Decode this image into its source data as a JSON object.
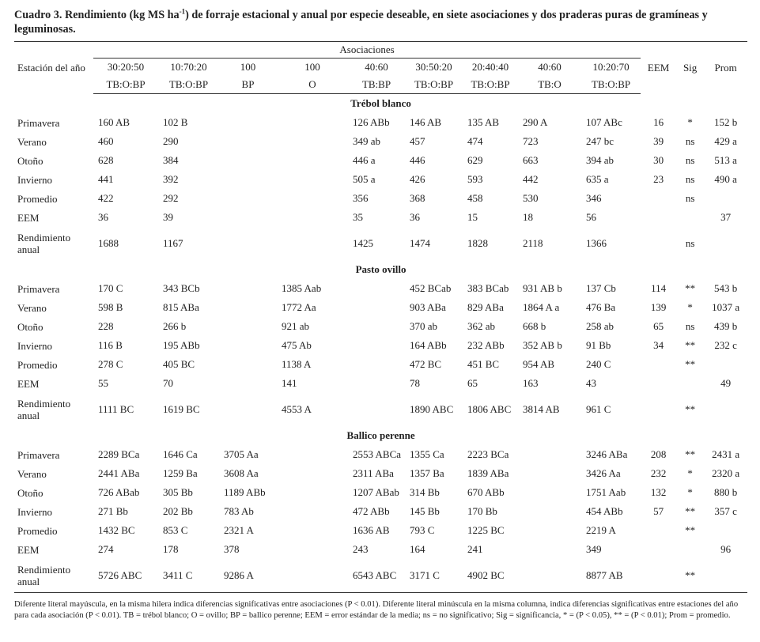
{
  "caption": {
    "text_1": "Cuadro 3. Rendimiento (kg MS ha",
    "sup": "-1",
    "text_2": ") de forraje estacional y anual por especie deseable, en siete asociaciones y dos praderas puras de gramíneas y leguminosas."
  },
  "header": {
    "stub": "Estación del año",
    "group": "Asociaciones",
    "columns": [
      {
        "ratio": "30:20:50",
        "species": "TB:O:BP"
      },
      {
        "ratio": "10:70:20",
        "species": "TB:O:BP"
      },
      {
        "ratio": "100",
        "species": "BP"
      },
      {
        "ratio": "100",
        "species": "O"
      },
      {
        "ratio": "40:60",
        "species": "TB:BP"
      },
      {
        "ratio": "30:50:20",
        "species": "TB:O:BP"
      },
      {
        "ratio": "20:40:40",
        "species": "TB:O:BP"
      },
      {
        "ratio": "40:60",
        "species": "TB:O"
      },
      {
        "ratio": "10:20:70",
        "species": "TB:O:BP"
      }
    ],
    "extra": [
      "EEM",
      "Sig",
      "Prom"
    ]
  },
  "sections": [
    {
      "title": "Trébol blanco",
      "rows": [
        {
          "label": "Primavera",
          "cells": [
            "160 AB",
            "102 B",
            null,
            null,
            "126 ABb",
            "146 AB",
            "135 AB",
            "290 A",
            "107 ABc",
            "16",
            "*",
            "152 b"
          ]
        },
        {
          "label": "Verano",
          "cells": [
            "460",
            "290",
            null,
            null,
            "349 ab",
            "457",
            "474",
            "723",
            "247 bc",
            "39",
            "ns",
            "429 a"
          ]
        },
        {
          "label": "Otoño",
          "cells": [
            "628",
            "384",
            null,
            null,
            "446 a",
            "446",
            "629",
            "663",
            "394 ab",
            "30",
            "ns",
            "513 a"
          ]
        },
        {
          "label": "Invierno",
          "cells": [
            "441",
            "392",
            null,
            null,
            "505 a",
            "426",
            "593",
            "442",
            "635 a",
            "23",
            "ns",
            "490 a"
          ]
        },
        {
          "label": "Promedio",
          "cells": [
            "422",
            "292",
            null,
            null,
            "356",
            "368",
            "458",
            "530",
            "346",
            null,
            "ns",
            null
          ]
        },
        {
          "label": "EEM",
          "cells": [
            "36",
            "39",
            null,
            null,
            "35",
            "36",
            "15",
            "18",
            "56",
            null,
            null,
            "37"
          ]
        },
        {
          "label": "Rendimiento anual",
          "cells": [
            "1688",
            "1167",
            null,
            null,
            "1425",
            "1474",
            "1828",
            "2118",
            "1366",
            null,
            "ns",
            null
          ]
        }
      ]
    },
    {
      "title": "Pasto ovillo",
      "rows": [
        {
          "label": "Primavera",
          "cells": [
            "170 C",
            "343 BCb",
            null,
            "1385 Aab",
            null,
            "452 BCab",
            "383 BCab",
            "931 AB b",
            "137 Cb",
            "114",
            "**",
            "543 b"
          ]
        },
        {
          "label": "Verano",
          "cells": [
            "598 B",
            "815 ABa",
            null,
            "1772 Aa",
            null,
            "903 ABa",
            "829 ABa",
            "1864 A a",
            "476 Ba",
            "139",
            "*",
            "1037 a"
          ]
        },
        {
          "label": "Otoño",
          "cells": [
            "228",
            "266 b",
            null,
            "921 ab",
            null,
            "370 ab",
            "362 ab",
            "668 b",
            "258 ab",
            "65",
            "ns",
            "439 b"
          ]
        },
        {
          "label": "Invierno",
          "cells": [
            "116 B",
            "195 ABb",
            null,
            "475 Ab",
            null,
            "164 ABb",
            "232 ABb",
            "352 AB b",
            "91 Bb",
            "34",
            "**",
            "232 c"
          ]
        },
        {
          "label": "Promedio",
          "cells": [
            "278 C",
            "405 BC",
            null,
            "1138 A",
            null,
            "472 BC",
            "451 BC",
            "954 AB",
            "240 C",
            null,
            "**",
            null
          ]
        },
        {
          "label": "EEM",
          "cells": [
            "55",
            "70",
            null,
            "141",
            null,
            "78",
            "65",
            "163",
            "43",
            null,
            null,
            "49"
          ]
        },
        {
          "label": "Rendimiento anual",
          "cells": [
            "1111 BC",
            "1619 BC",
            null,
            "4553 A",
            null,
            "1890 ABC",
            "1806 ABC",
            "3814 AB",
            "961 C",
            null,
            "**",
            null
          ]
        }
      ]
    },
    {
      "title": "Ballico perenne",
      "rows": [
        {
          "label": "Primavera",
          "cells": [
            "2289 BCa",
            "1646 Ca",
            "3705 Aa",
            null,
            "2553 ABCa",
            "1355 Ca",
            "2223 BCa",
            null,
            "3246 ABa",
            "208",
            "**",
            "2431 a"
          ]
        },
        {
          "label": "Verano",
          "cells": [
            "2441 ABa",
            "1259 Ba",
            "3608 Aa",
            null,
            "2311 ABa",
            "1357 Ba",
            "1839 ABa",
            null,
            "3426 Aa",
            "232",
            "*",
            "2320 a"
          ]
        },
        {
          "label": "Otoño",
          "cells": [
            "726 ABab",
            "305 Bb",
            "1189 ABb",
            null,
            "1207 ABab",
            "314 Bb",
            "670 ABb",
            null,
            "1751 Aab",
            "132",
            "*",
            "880 b"
          ]
        },
        {
          "label": "Invierno",
          "cells": [
            "271 Bb",
            "202 Bb",
            "783 Ab",
            null,
            "472 ABb",
            "145 Bb",
            "170 Bb",
            null,
            "454 ABb",
            "57",
            "**",
            "357 c"
          ]
        },
        {
          "label": "Promedio",
          "cells": [
            "1432 BC",
            "853 C",
            "2321 A",
            null,
            "1636 AB",
            "793 C",
            "1225 BC",
            null,
            "2219 A",
            null,
            "**",
            null
          ]
        },
        {
          "label": "EEM",
          "cells": [
            "274",
            "178",
            "378",
            null,
            "243",
            "164",
            "241",
            null,
            "349",
            null,
            null,
            "96"
          ]
        },
        {
          "label": "Rendimiento anual",
          "cells": [
            "5726 ABC",
            "3411 C",
            "9286 A",
            null,
            "6543 ABC",
            "3171 C",
            "4902 BC",
            null,
            "8877 AB",
            null,
            "**",
            null
          ]
        }
      ]
    }
  ],
  "footnote": "Diferente literal mayúscula, en la misma hilera indica diferencias significativas entre asociaciones (P < 0.01). Diferente literal minúscula en la misma columna, indica diferencias significativas entre estaciones del año para cada asociación (P < 0.01). TB = trébol blanco; O = ovillo; BP = ballico perenne; EEM = error estándar de la media; ns = no significativo; Sig = significancia, * = (P < 0.05), ** = (P < 0.01); Prom = promedio."
}
